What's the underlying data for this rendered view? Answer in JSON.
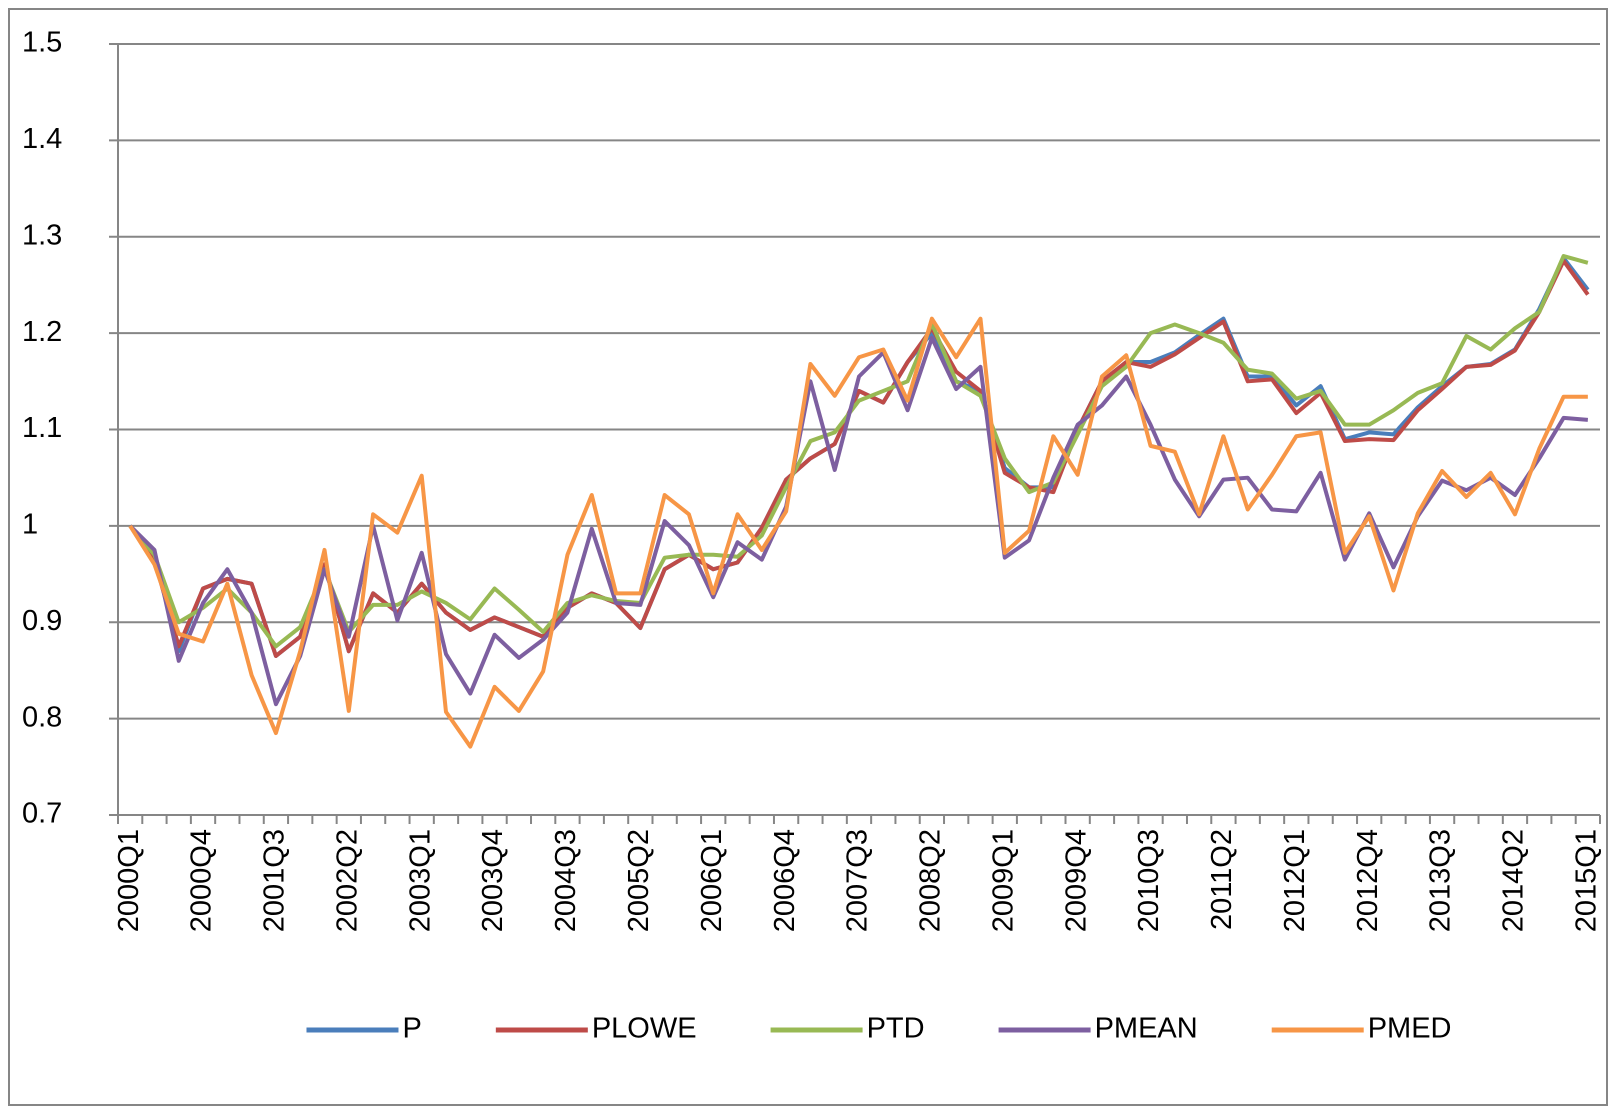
{
  "chart_data": {
    "type": "line",
    "categories": [
      "2000Q1",
      null,
      null,
      "2000Q4",
      null,
      null,
      "2001Q3",
      null,
      null,
      "2002Q2",
      null,
      null,
      "2003Q1",
      null,
      null,
      "2003Q4",
      null,
      null,
      "2004Q3",
      null,
      null,
      "2005Q2",
      null,
      null,
      "2006Q1",
      null,
      null,
      "2006Q4",
      null,
      null,
      "2007Q3",
      null,
      null,
      "2008Q2",
      null,
      null,
      "2009Q1",
      null,
      null,
      "2009Q4",
      null,
      null,
      "2010Q3",
      null,
      null,
      "2011Q2",
      null,
      null,
      "2012Q1",
      null,
      null,
      "2012Q4",
      null,
      null,
      "2013Q3",
      null,
      null,
      "2014Q2",
      null,
      null,
      "2015Q1"
    ],
    "series": [
      {
        "name": "P",
        "color": "#4a7ebb",
        "values": [
          1.0,
          0.97,
          0.87,
          0.935,
          0.945,
          0.94,
          0.865,
          0.885,
          0.96,
          0.87,
          0.93,
          0.91,
          0.94,
          0.91,
          0.892,
          0.905,
          0.895,
          0.885,
          0.915,
          0.93,
          0.92,
          0.894,
          0.955,
          0.97,
          0.955,
          0.962,
          0.998,
          1.048,
          1.07,
          1.085,
          1.14,
          1.128,
          1.17,
          1.2,
          1.15,
          1.14,
          1.06,
          1.04,
          1.04,
          1.1,
          1.15,
          1.17,
          1.17,
          1.18,
          1.198,
          1.215,
          1.155,
          1.155,
          1.125,
          1.145,
          1.09,
          1.097,
          1.095,
          1.123,
          1.145,
          1.165,
          1.168,
          1.183,
          1.225,
          1.278,
          1.245
        ]
      },
      {
        "name": "PLOWE",
        "color": "#be4b48",
        "values": [
          1.0,
          0.965,
          0.875,
          0.935,
          0.945,
          0.94,
          0.865,
          0.885,
          0.96,
          0.87,
          0.93,
          0.91,
          0.94,
          0.91,
          0.892,
          0.905,
          0.895,
          0.885,
          0.915,
          0.93,
          0.92,
          0.894,
          0.955,
          0.97,
          0.955,
          0.962,
          0.998,
          1.048,
          1.07,
          1.085,
          1.14,
          1.128,
          1.17,
          1.205,
          1.16,
          1.14,
          1.055,
          1.04,
          1.035,
          1.1,
          1.15,
          1.17,
          1.165,
          1.178,
          1.195,
          1.212,
          1.15,
          1.152,
          1.117,
          1.138,
          1.088,
          1.09,
          1.089,
          1.12,
          1.142,
          1.165,
          1.167,
          1.182,
          1.222,
          1.275,
          1.24
        ]
      },
      {
        "name": "PTD",
        "color": "#98b954",
        "values": [
          1.0,
          0.97,
          0.9,
          0.915,
          0.935,
          0.91,
          0.875,
          0.895,
          0.955,
          0.89,
          0.918,
          0.918,
          0.932,
          0.92,
          0.903,
          0.935,
          0.913,
          0.89,
          0.92,
          0.928,
          0.922,
          0.92,
          0.967,
          0.97,
          0.97,
          0.968,
          0.99,
          1.04,
          1.088,
          1.097,
          1.13,
          1.14,
          1.15,
          1.21,
          1.15,
          1.135,
          1.07,
          1.035,
          1.045,
          1.095,
          1.145,
          1.165,
          1.2,
          1.209,
          1.2,
          1.19,
          1.162,
          1.158,
          1.132,
          1.14,
          1.105,
          1.105,
          1.12,
          1.138,
          1.148,
          1.197,
          1.183,
          1.205,
          1.222,
          1.28,
          1.273
        ]
      },
      {
        "name": "PMEAN",
        "color": "#7d5fa0",
        "values": [
          1.0,
          0.975,
          0.86,
          0.92,
          0.955,
          0.91,
          0.815,
          0.865,
          0.955,
          0.885,
          1.0,
          0.902,
          0.972,
          0.867,
          0.826,
          0.887,
          0.863,
          0.882,
          0.91,
          0.997,
          0.92,
          0.918,
          1.005,
          0.98,
          0.926,
          0.983,
          0.965,
          1.02,
          1.15,
          1.058,
          1.155,
          1.18,
          1.12,
          1.195,
          1.142,
          1.165,
          0.967,
          0.985,
          1.05,
          1.105,
          1.125,
          1.155,
          1.105,
          1.048,
          1.01,
          1.048,
          1.05,
          1.017,
          1.015,
          1.055,
          0.965,
          1.013,
          0.957,
          1.01,
          1.047,
          1.037,
          1.05,
          1.032,
          1.07,
          1.112,
          1.11
        ]
      },
      {
        "name": "PMED",
        "color": "#f79646",
        "values": [
          1.0,
          0.96,
          0.888,
          0.88,
          0.94,
          0.845,
          0.785,
          0.87,
          0.975,
          0.808,
          1.012,
          0.993,
          1.052,
          0.807,
          0.771,
          0.833,
          0.808,
          0.849,
          0.97,
          1.032,
          0.93,
          0.93,
          1.032,
          1.012,
          0.93,
          1.012,
          0.975,
          1.015,
          1.168,
          1.135,
          1.175,
          1.183,
          1.13,
          1.215,
          1.175,
          1.215,
          0.972,
          0.995,
          1.093,
          1.053,
          1.155,
          1.177,
          1.083,
          1.077,
          1.012,
          1.093,
          1.017,
          1.053,
          1.093,
          1.097,
          0.972,
          1.01,
          0.933,
          1.013,
          1.057,
          1.03,
          1.055,
          1.012,
          1.08,
          1.134,
          1.134
        ]
      }
    ],
    "ylim": [
      0.7,
      1.5
    ],
    "yticks": [
      0.7,
      0.8,
      0.9,
      1,
      1.1,
      1.2,
      1.3,
      1.4,
      1.5
    ],
    "grid": true,
    "legend": "bottom"
  }
}
